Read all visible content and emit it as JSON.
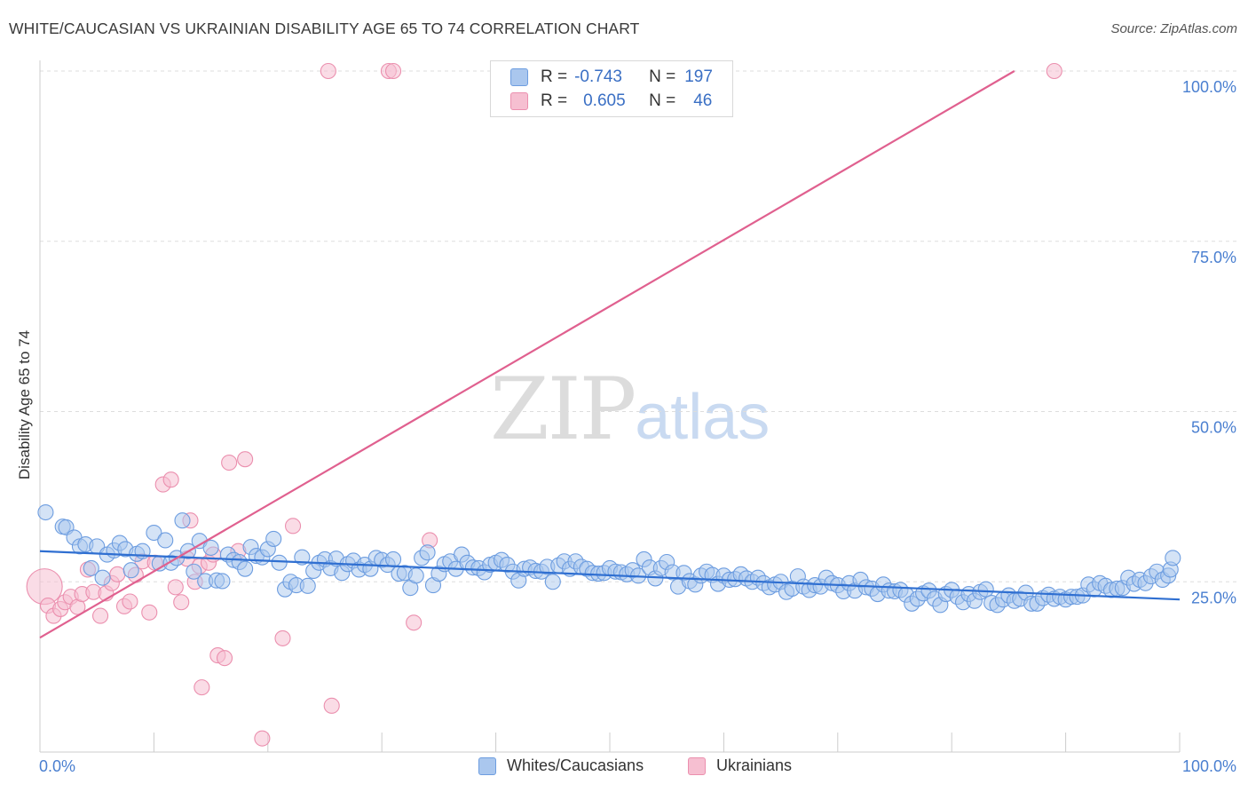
{
  "header": {
    "title": "WHITE/CAUCASIAN VS UKRAINIAN DISABILITY AGE 65 TO 74 CORRELATION CHART",
    "source": "Source: ZipAtlas.com"
  },
  "watermark": {
    "zip": "ZIP",
    "atlas": "atlas"
  },
  "legend": {
    "rows": [
      {
        "r_label": "R =",
        "r_value": "-0.743",
        "n_label": "N =",
        "n_value": "197"
      },
      {
        "r_label": "R =",
        "r_value": "0.605",
        "n_label": "N =",
        "n_value": "46"
      }
    ]
  },
  "bottom_legend": {
    "white": "Whites/Caucasians",
    "ukrainian": "Ukrainians"
  },
  "colors": {
    "blue_fill": "#aac7ee",
    "blue_stroke": "#6d9de0",
    "blue_line": "#2f6fd1",
    "pink_fill": "#f6bfd1",
    "pink_stroke": "#eb8fae",
    "pink_line": "#e0608f",
    "tick_label": "#4a7fd0",
    "grid": "#dddddd"
  },
  "chart_data": {
    "type": "scatter",
    "title": "WHITE/CAUCASIAN VS UKRAINIAN DISABILITY AGE 65 TO 74 CORRELATION CHART",
    "xlabel": "",
    "ylabel": "Disability Age 65 to 74",
    "xlim": [
      0,
      100
    ],
    "ylim": [
      0,
      100
    ],
    "x_tick_labels": [
      "0.0%",
      "100.0%"
    ],
    "y_ticks": [
      25,
      50,
      75,
      100
    ],
    "y_tick_labels": [
      "25.0%",
      "50.0%",
      "75.0%",
      "100.0%"
    ],
    "grid": true,
    "legend_position": "top-center",
    "series": [
      {
        "name": "Whites/Caucasians",
        "r": -0.743,
        "n": 197,
        "trend": {
          "x": [
            0,
            100
          ],
          "y": [
            29.5,
            22.4
          ]
        },
        "points": [
          [
            0.5,
            35.2
          ],
          [
            2,
            33.1
          ],
          [
            2.3,
            33.0
          ],
          [
            3,
            31.5
          ],
          [
            3.5,
            30.2
          ],
          [
            4,
            30.5
          ],
          [
            4.5,
            27.0
          ],
          [
            5,
            30.2
          ],
          [
            5.5,
            25.6
          ],
          [
            5.9,
            29.0
          ],
          [
            6.5,
            29.6
          ],
          [
            7,
            30.7
          ],
          [
            7.5,
            29.8
          ],
          [
            8,
            26.7
          ],
          [
            8.5,
            29.1
          ],
          [
            9,
            29.5
          ],
          [
            10,
            32.2
          ],
          [
            10.5,
            27.7
          ],
          [
            11,
            31.1
          ],
          [
            11.5,
            27.8
          ],
          [
            12,
            28.5
          ],
          [
            12.5,
            34.0
          ],
          [
            13,
            29.5
          ],
          [
            13.5,
            26.5
          ],
          [
            14,
            31.0
          ],
          [
            14.5,
            25.1
          ],
          [
            15,
            30.0
          ],
          [
            15.5,
            25.2
          ],
          [
            16,
            25.1
          ],
          [
            16.5,
            29.0
          ],
          [
            17,
            28.2
          ],
          [
            17.5,
            27.9
          ],
          [
            18,
            26.9
          ],
          [
            18.5,
            30.1
          ],
          [
            19,
            28.8
          ],
          [
            19.5,
            28.6
          ],
          [
            20,
            29.8
          ],
          [
            20.5,
            31.3
          ],
          [
            21,
            27.8
          ],
          [
            21.5,
            23.9
          ],
          [
            22,
            25.0
          ],
          [
            22.5,
            24.5
          ],
          [
            23,
            28.6
          ],
          [
            23.5,
            24.4
          ],
          [
            24,
            26.6
          ],
          [
            24.5,
            27.8
          ],
          [
            25,
            28.3
          ],
          [
            25.5,
            27.0
          ],
          [
            26,
            28.4
          ],
          [
            26.5,
            26.3
          ],
          [
            27,
            27.6
          ],
          [
            27.5,
            28.1
          ],
          [
            28,
            26.8
          ],
          [
            28.5,
            27.5
          ],
          [
            29,
            26.9
          ],
          [
            29.5,
            28.5
          ],
          [
            30,
            28.2
          ],
          [
            30.5,
            27.5
          ],
          [
            31,
            28.3
          ],
          [
            31.5,
            26.2
          ],
          [
            32,
            26.3
          ],
          [
            32.5,
            24.1
          ],
          [
            33,
            25.9
          ],
          [
            33.5,
            28.5
          ],
          [
            34,
            29.3
          ],
          [
            34.5,
            24.5
          ],
          [
            35,
            26.2
          ],
          [
            35.5,
            27.6
          ],
          [
            36,
            28.0
          ],
          [
            36.5,
            26.9
          ],
          [
            37,
            29.0
          ],
          [
            37.5,
            27.8
          ],
          [
            38,
            27.1
          ],
          [
            38.5,
            27.0
          ],
          [
            39,
            26.4
          ],
          [
            39.5,
            27.5
          ],
          [
            40,
            27.8
          ],
          [
            40.5,
            28.2
          ],
          [
            41,
            27.5
          ],
          [
            41.5,
            26.5
          ],
          [
            42,
            25.2
          ],
          [
            42.5,
            26.9
          ],
          [
            43,
            27.1
          ],
          [
            43.5,
            26.6
          ],
          [
            44,
            26.5
          ],
          [
            44.5,
            27.2
          ],
          [
            45,
            25.0
          ],
          [
            45.5,
            27.4
          ],
          [
            46,
            28.0
          ],
          [
            46.5,
            26.9
          ],
          [
            47,
            28.0
          ],
          [
            47.5,
            27.2
          ],
          [
            48,
            26.9
          ],
          [
            48.5,
            26.3
          ],
          [
            49,
            26.2
          ],
          [
            49.5,
            26.3
          ],
          [
            50,
            27.0
          ],
          [
            50.5,
            26.5
          ],
          [
            51,
            26.4
          ],
          [
            51.5,
            26.1
          ],
          [
            52,
            26.7
          ],
          [
            52.5,
            25.9
          ],
          [
            53,
            28.3
          ],
          [
            53.5,
            27.1
          ],
          [
            54,
            25.5
          ],
          [
            54.5,
            27.0
          ],
          [
            55,
            27.9
          ],
          [
            55.5,
            26.4
          ],
          [
            56,
            24.3
          ],
          [
            56.5,
            26.3
          ],
          [
            57,
            25.1
          ],
          [
            57.5,
            24.6
          ],
          [
            58,
            25.9
          ],
          [
            58.5,
            26.5
          ],
          [
            59,
            26.0
          ],
          [
            59.5,
            24.7
          ],
          [
            60,
            25.9
          ],
          [
            60.5,
            25.3
          ],
          [
            61,
            25.4
          ],
          [
            61.5,
            26.1
          ],
          [
            62,
            25.5
          ],
          [
            62.5,
            25.0
          ],
          [
            63,
            25.6
          ],
          [
            63.5,
            24.8
          ],
          [
            64,
            24.2
          ],
          [
            64.5,
            24.6
          ],
          [
            65,
            25.0
          ],
          [
            65.5,
            23.5
          ],
          [
            66,
            24.0
          ],
          [
            66.5,
            25.8
          ],
          [
            67,
            24.3
          ],
          [
            67.5,
            23.8
          ],
          [
            68,
            24.5
          ],
          [
            68.5,
            24.3
          ],
          [
            69,
            25.6
          ],
          [
            69.5,
            24.8
          ],
          [
            70,
            24.5
          ],
          [
            70.5,
            23.6
          ],
          [
            71,
            24.8
          ],
          [
            71.5,
            23.7
          ],
          [
            72,
            25.3
          ],
          [
            72.5,
            24.2
          ],
          [
            73,
            24.0
          ],
          [
            73.5,
            23.2
          ],
          [
            74,
            24.6
          ],
          [
            74.5,
            23.7
          ],
          [
            75,
            23.6
          ],
          [
            75.5,
            23.8
          ],
          [
            76,
            23.1
          ],
          [
            76.5,
            21.8
          ],
          [
            77,
            22.5
          ],
          [
            77.5,
            23.3
          ],
          [
            78,
            23.7
          ],
          [
            78.5,
            22.5
          ],
          [
            79,
            21.6
          ],
          [
            79.5,
            23.2
          ],
          [
            80,
            23.8
          ],
          [
            80.5,
            22.8
          ],
          [
            81,
            22.0
          ],
          [
            81.5,
            23.2
          ],
          [
            82,
            22.2
          ],
          [
            82.5,
            23.5
          ],
          [
            83,
            23.9
          ],
          [
            83.5,
            21.9
          ],
          [
            84,
            21.6
          ],
          [
            84.5,
            22.4
          ],
          [
            85,
            23.0
          ],
          [
            85.5,
            22.2
          ],
          [
            86,
            22.5
          ],
          [
            86.5,
            23.4
          ],
          [
            87,
            21.8
          ],
          [
            87.5,
            21.8
          ],
          [
            88,
            22.6
          ],
          [
            88.5,
            23.1
          ],
          [
            89,
            22.5
          ],
          [
            89.5,
            22.8
          ],
          [
            90,
            22.4
          ],
          [
            90.5,
            22.8
          ],
          [
            91,
            22.8
          ],
          [
            91.5,
            23.0
          ],
          [
            92,
            24.6
          ],
          [
            92.5,
            23.9
          ],
          [
            93,
            24.8
          ],
          [
            93.5,
            24.4
          ],
          [
            94,
            23.8
          ],
          [
            94.5,
            24.0
          ],
          [
            95,
            24.1
          ],
          [
            95.5,
            25.6
          ],
          [
            96,
            24.7
          ],
          [
            96.5,
            25.3
          ],
          [
            97,
            24.8
          ],
          [
            97.5,
            25.8
          ],
          [
            98,
            26.5
          ],
          [
            98.5,
            25.3
          ],
          [
            99,
            25.9
          ],
          [
            99.2,
            26.8
          ],
          [
            99.4,
            28.5
          ]
        ]
      },
      {
        "name": "Ukrainians",
        "r": 0.605,
        "n": 46,
        "trend": {
          "x": [
            0,
            85.5
          ],
          "y": [
            16.8,
            100
          ]
        },
        "points": [
          [
            0.4,
            24.3
          ],
          [
            0.7,
            21.5
          ],
          [
            1.2,
            20.0
          ],
          [
            1.8,
            21.0
          ],
          [
            2.2,
            22.0
          ],
          [
            2.7,
            22.8
          ],
          [
            3.3,
            21.3
          ],
          [
            3.7,
            23.2
          ],
          [
            4.2,
            26.8
          ],
          [
            4.7,
            23.5
          ],
          [
            5.3,
            20.0
          ],
          [
            5.8,
            23.3
          ],
          [
            6.3,
            24.8
          ],
          [
            6.8,
            26.1
          ],
          [
            7.4,
            21.4
          ],
          [
            7.9,
            22.1
          ],
          [
            8.4,
            26.0
          ],
          [
            9.0,
            28.0
          ],
          [
            9.6,
            20.5
          ],
          [
            10.1,
            27.8
          ],
          [
            10.8,
            39.3
          ],
          [
            11.5,
            40.0
          ],
          [
            11.9,
            24.2
          ],
          [
            12.4,
            22.0
          ],
          [
            12.9,
            28.4
          ],
          [
            13.2,
            34.0
          ],
          [
            13.6,
            25.0
          ],
          [
            14.0,
            27.3
          ],
          [
            14.2,
            9.5
          ],
          [
            14.8,
            27.8
          ],
          [
            15.2,
            29.0
          ],
          [
            15.6,
            14.2
          ],
          [
            16.2,
            13.8
          ],
          [
            16.6,
            42.5
          ],
          [
            17.4,
            29.5
          ],
          [
            18.0,
            43.0
          ],
          [
            19.5,
            2.0
          ],
          [
            21.3,
            16.7
          ],
          [
            22.2,
            33.2
          ],
          [
            25.3,
            100
          ],
          [
            25.6,
            6.8
          ],
          [
            30.6,
            100
          ],
          [
            31.0,
            100
          ],
          [
            32.8,
            19.0
          ],
          [
            34.2,
            31.1
          ],
          [
            89.0,
            100
          ]
        ]
      }
    ]
  }
}
